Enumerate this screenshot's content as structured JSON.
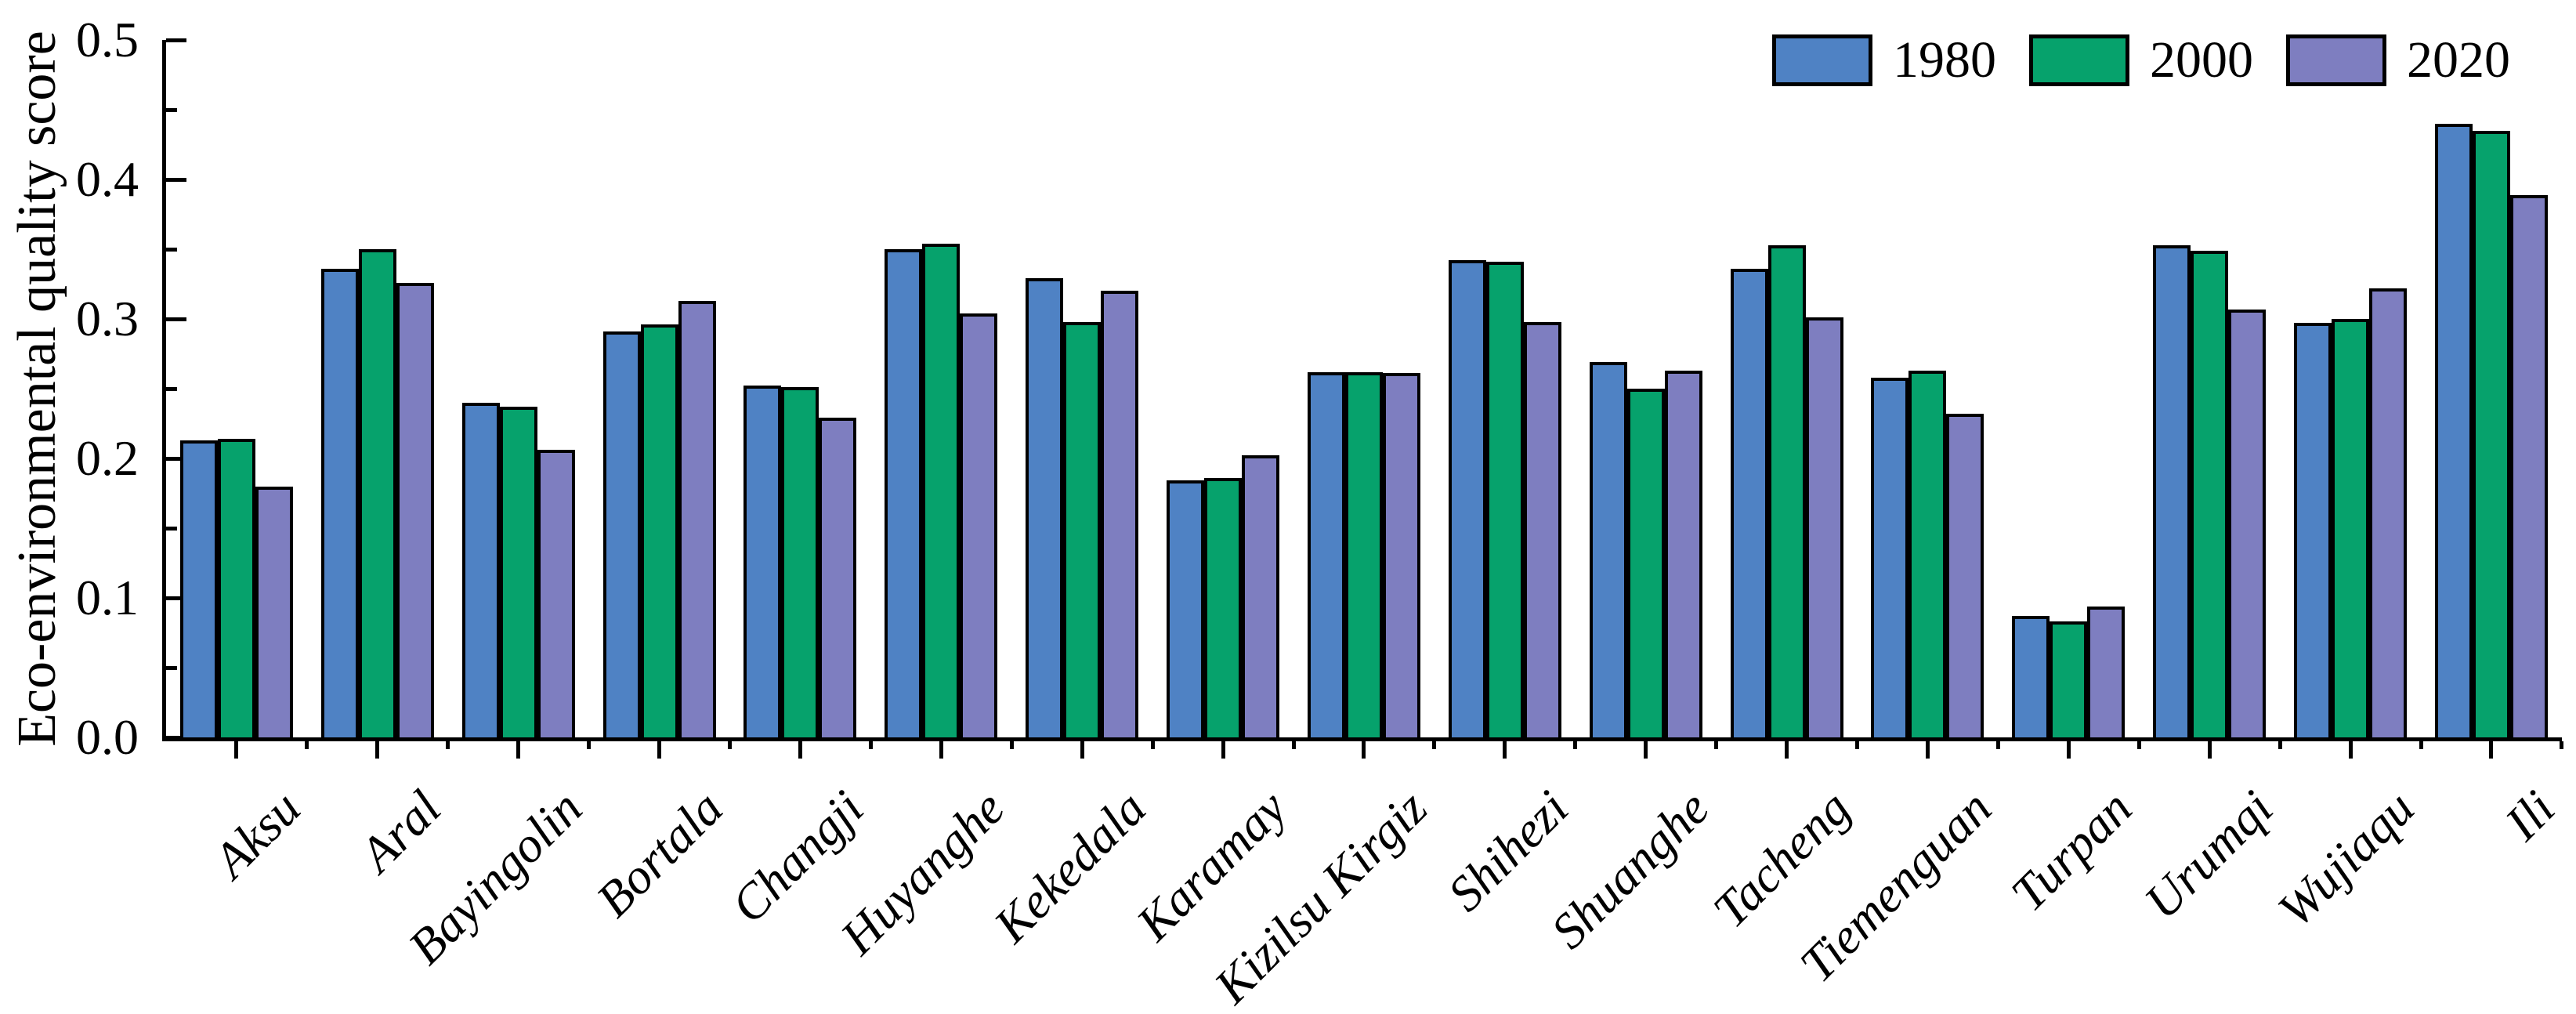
{
  "chart_data": {
    "type": "bar",
    "title": "",
    "xlabel": "",
    "ylabel": "Eco-environmental quality score",
    "ylim": [
      0,
      0.5
    ],
    "y_major_ticks": [
      0.0,
      0.1,
      0.2,
      0.3,
      0.4,
      0.5
    ],
    "y_minor_tick_step": 0.05,
    "grid": false,
    "legend_position": "top-right",
    "bar_edge_color": "#000000",
    "categories": [
      "Aksu",
      "Aral",
      "Bayingolin",
      "Bortala",
      "Changji",
      "Huyanghe",
      "Kekedala",
      "Karamay",
      "Kizilsu Kirgiz",
      "Shihezi",
      "Shuanghe",
      "Tacheng",
      "Tiemenguan",
      "Turpan",
      "Urumqi",
      "Wujiaqu",
      "Ili"
    ],
    "series": [
      {
        "name": "1980",
        "color": "#4F82C4",
        "values": [
          0.213,
          0.336,
          0.24,
          0.291,
          0.252,
          0.35,
          0.329,
          0.184,
          0.262,
          0.342,
          0.269,
          0.336,
          0.258,
          0.087,
          0.353,
          0.297,
          0.44
        ]
      },
      {
        "name": "2000",
        "color": "#06A26C",
        "values": [
          0.214,
          0.35,
          0.237,
          0.296,
          0.251,
          0.354,
          0.298,
          0.186,
          0.262,
          0.341,
          0.25,
          0.353,
          0.263,
          0.083,
          0.349,
          0.3,
          0.435
        ]
      },
      {
        "name": "2020",
        "color": "#7E7EC0",
        "values": [
          0.18,
          0.326,
          0.206,
          0.313,
          0.229,
          0.304,
          0.32,
          0.202,
          0.261,
          0.298,
          0.263,
          0.301,
          0.232,
          0.094,
          0.307,
          0.322,
          0.389
        ]
      }
    ]
  }
}
